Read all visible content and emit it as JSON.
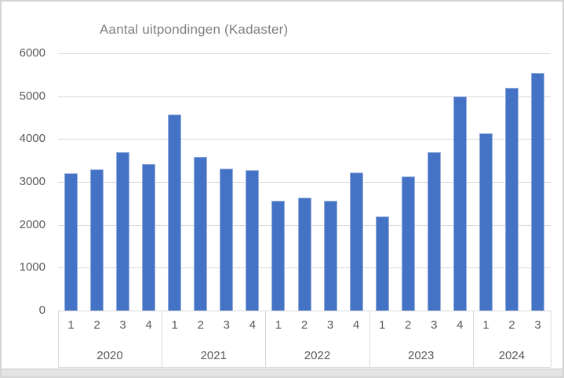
{
  "window": {
    "background": "#ffffff",
    "frame_border_color": "#d5d5d5",
    "bottom_band_color": "#e4e4e4"
  },
  "chart_data": {
    "type": "bar",
    "title": "Aantal uitpondingen (Kadaster)",
    "xlabel": "",
    "ylabel": "",
    "ylim": [
      0,
      6000
    ],
    "yticks": [
      0,
      1000,
      2000,
      3000,
      4000,
      5000,
      6000
    ],
    "grid": true,
    "legend": "none",
    "bar_color": "#4472c4",
    "bar_edge_color": "#94aedd",
    "gridline_color": "#d9d9d9",
    "tick_label_color": "#595959",
    "title_color": "#7f7f7f",
    "x_axis_levels": [
      "quarter",
      "year"
    ],
    "groups": [
      {
        "year": "2020",
        "quarters": [
          "1",
          "2",
          "3",
          "4"
        ],
        "values": [
          3200,
          3300,
          3700,
          3430
        ]
      },
      {
        "year": "2021",
        "quarters": [
          "1",
          "2",
          "3",
          "4"
        ],
        "values": [
          4570,
          3580,
          3320,
          3280
        ]
      },
      {
        "year": "2022",
        "quarters": [
          "1",
          "2",
          "3",
          "4"
        ],
        "values": [
          2560,
          2640,
          2570,
          3220
        ]
      },
      {
        "year": "2023",
        "quarters": [
          "1",
          "2",
          "3",
          "4"
        ],
        "values": [
          2200,
          3130,
          3700,
          5000
        ]
      },
      {
        "year": "2024",
        "quarters": [
          "1",
          "2",
          "3"
        ],
        "values": [
          4130,
          5190,
          5540
        ]
      }
    ]
  }
}
